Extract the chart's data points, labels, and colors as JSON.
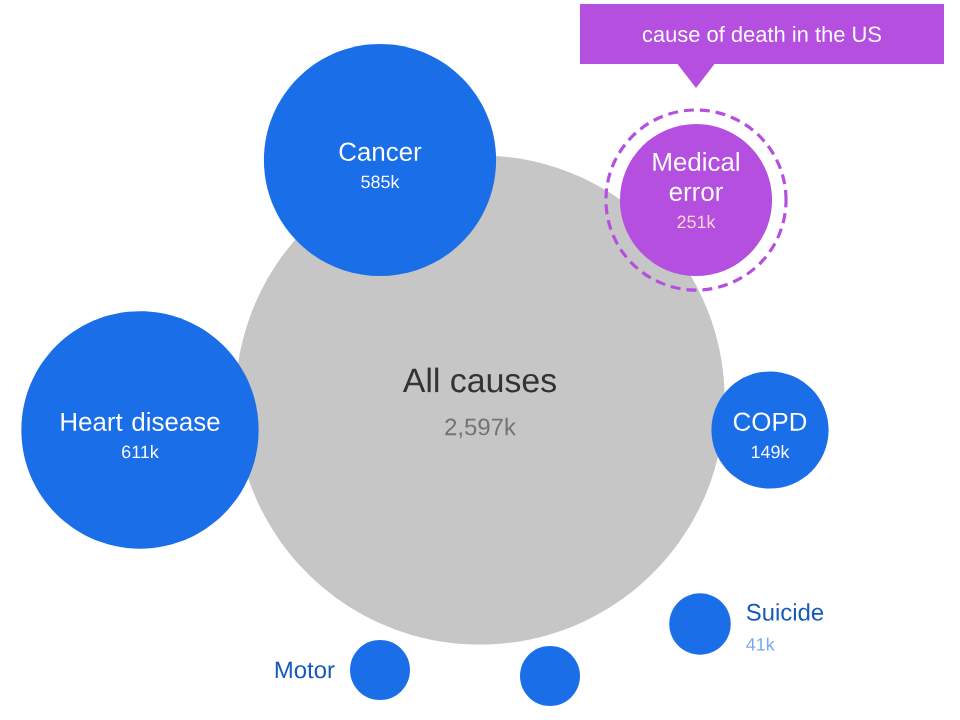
{
  "chart_data": {
    "type": "other",
    "categories": [
      "All causes",
      "Cancer",
      "Heart disease",
      "Medical error",
      "COPD",
      "Suicide",
      "Motor",
      null
    ],
    "values": [
      2597,
      585,
      611,
      251,
      149,
      41,
      null,
      null
    ],
    "value_labels": [
      "2,597k",
      "585k",
      "611k",
      "251k",
      "149k",
      "41k",
      null,
      null
    ],
    "colors": [
      "#c6c6c6",
      "#1a6fe8",
      "#1a6fe8",
      "#b54fe0",
      "#1a6fe8",
      "#1a6fe8",
      "#1a6fe8",
      "#1a6fe8"
    ],
    "annotations": [
      "cause of death in the US"
    ]
  }
}
